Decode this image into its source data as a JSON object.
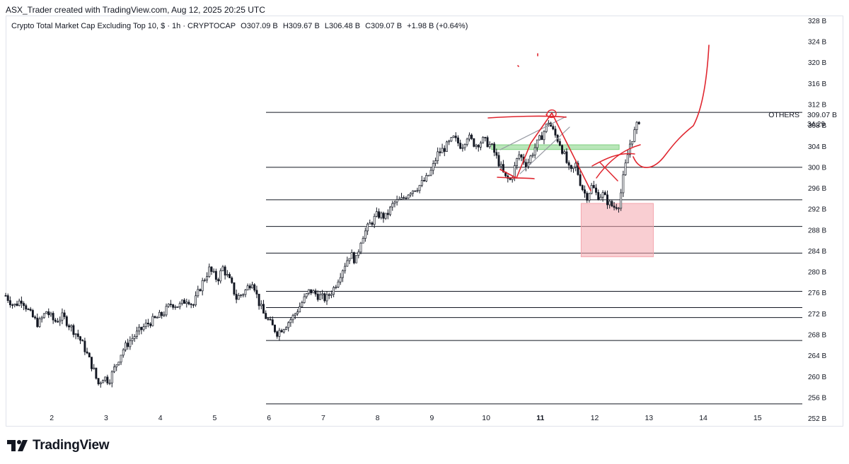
{
  "header": {
    "attribution": "ASX_Trader created with TradingView.com, Aug 12, 2025 20:25 UTC"
  },
  "legend": {
    "title": "Crypto Total Market Cap Excluding Top 10, $ · 1h · CRYPTOCAP",
    "open": "O307.09 B",
    "high": "H309.67 B",
    "low": "L306.48 B",
    "close": "C309.07 B",
    "change": "+1.98 B (+0.64%)"
  },
  "price_tag": {
    "symbol": "OTHERS",
    "price": "309.07 B",
    "countdown": "34:29"
  },
  "brand": {
    "name": "TradingView"
  },
  "chart_data": {
    "type": "candlestick",
    "y_unit": "B",
    "ylim": [
      251,
      329
    ],
    "y_ticks": [
      252,
      256,
      260,
      264,
      268,
      272,
      276,
      280,
      284,
      288,
      292,
      296,
      300,
      304,
      308,
      312,
      316,
      320,
      324,
      328
    ],
    "y_tick_labels": [
      "252 B",
      "256 B",
      "260 B",
      "264 B",
      "268 B",
      "272 B",
      "276 B",
      "280 B",
      "284 B",
      "288 B",
      "292 B",
      "296 B",
      "300 B",
      "304 B",
      "308 B",
      "312 B",
      "316 B",
      "320 B",
      "324 B",
      "328 B"
    ],
    "x_ticks": [
      2,
      3,
      4,
      5,
      6,
      7,
      8,
      9,
      10,
      11,
      12,
      13,
      14,
      15
    ],
    "x_tick_labels": [
      "2",
      "3",
      "4",
      "5",
      "6",
      "7",
      "8",
      "9",
      "10",
      "11",
      "12",
      "13",
      "14",
      "15"
    ],
    "xlim": [
      1.15,
      15.85
    ],
    "close_path": [
      [
        1.15,
        275.5
      ],
      [
        1.3,
        273.5
      ],
      [
        1.45,
        274.8
      ],
      [
        1.6,
        272.0
      ],
      [
        1.75,
        270.0
      ],
      [
        1.9,
        272.5
      ],
      [
        2.05,
        270.5
      ],
      [
        2.2,
        271.5
      ],
      [
        2.35,
        269.5
      ],
      [
        2.5,
        267.5
      ],
      [
        2.6,
        265.5
      ],
      [
        2.7,
        263.0
      ],
      [
        2.78,
        261.0
      ],
      [
        2.85,
        258.5
      ],
      [
        2.95,
        260.0
      ],
      [
        3.05,
        259.2
      ],
      [
        3.15,
        261.5
      ],
      [
        3.3,
        265.0
      ],
      [
        3.45,
        267.0
      ],
      [
        3.6,
        268.6
      ],
      [
        3.75,
        270.0
      ],
      [
        3.9,
        271.0
      ],
      [
        4.05,
        272.0
      ],
      [
        4.2,
        274.0
      ],
      [
        4.35,
        273.5
      ],
      [
        4.5,
        275.0
      ],
      [
        4.6,
        273.5
      ],
      [
        4.75,
        277.5
      ],
      [
        4.9,
        280.5
      ],
      [
        5.05,
        278.5
      ],
      [
        5.15,
        280.8
      ],
      [
        5.3,
        277.8
      ],
      [
        5.4,
        275.0
      ],
      [
        5.55,
        276.2
      ],
      [
        5.7,
        278.5
      ],
      [
        5.8,
        274.5
      ],
      [
        5.9,
        272.0
      ],
      [
        6.0,
        270.5
      ],
      [
        6.15,
        268.4
      ],
      [
        6.3,
        269.8
      ],
      [
        6.45,
        271.5
      ],
      [
        6.6,
        274.0
      ],
      [
        6.75,
        276.5
      ],
      [
        6.9,
        275.5
      ],
      [
        7.05,
        274.8
      ],
      [
        7.2,
        277.0
      ],
      [
        7.35,
        280.5
      ],
      [
        7.5,
        283.5
      ],
      [
        7.6,
        282.0
      ],
      [
        7.7,
        286.5
      ],
      [
        7.85,
        289.0
      ],
      [
        8.0,
        291.0
      ],
      [
        8.15,
        290.5
      ],
      [
        8.3,
        293.2
      ],
      [
        8.45,
        293.8
      ],
      [
        8.6,
        295.5
      ],
      [
        8.75,
        296.3
      ],
      [
        8.9,
        297.8
      ],
      [
        9.0,
        299.5
      ],
      [
        9.1,
        302.5
      ],
      [
        9.25,
        303.8
      ],
      [
        9.4,
        305.5
      ],
      [
        9.55,
        304.0
      ],
      [
        9.65,
        306.0
      ],
      [
        9.8,
        304.3
      ],
      [
        9.95,
        305.2
      ],
      [
        10.1,
        304.0
      ],
      [
        10.25,
        300.5
      ],
      [
        10.35,
        298.0
      ],
      [
        10.45,
        297.5
      ],
      [
        10.6,
        302.5
      ],
      [
        10.75,
        300.5
      ],
      [
        10.9,
        303.8
      ],
      [
        11.05,
        306.5
      ],
      [
        11.15,
        308.8
      ],
      [
        11.25,
        306.5
      ],
      [
        11.35,
        304.8
      ],
      [
        11.45,
        302.0
      ],
      [
        11.55,
        298.8
      ],
      [
        11.65,
        300.5
      ],
      [
        11.75,
        296.5
      ],
      [
        11.85,
        294.3
      ],
      [
        11.95,
        296.5
      ],
      [
        12.05,
        294.5
      ],
      [
        12.15,
        294.8
      ],
      [
        12.25,
        293.2
      ],
      [
        12.35,
        292.4
      ],
      [
        12.45,
        293.0
      ],
      [
        12.55,
        299.5
      ],
      [
        12.65,
        304.5
      ],
      [
        12.75,
        307.2
      ],
      [
        12.82,
        309.07
      ]
    ],
    "horizontal_levels": [
      310.5,
      300.0,
      293.8,
      288.7,
      283.6,
      276.3,
      273.2,
      271.3,
      266.9,
      254.8
    ],
    "zones": [
      {
        "name": "green-zone",
        "x": [
          10.1,
          12.45
        ],
        "y": [
          303.4,
          304.3
        ],
        "color": "#7fd17f"
      },
      {
        "name": "red-zone",
        "x": [
          11.75,
          13.08
        ],
        "y": [
          282.9,
          293.1
        ],
        "color": "#f4a6ad"
      }
    ],
    "grid": false,
    "colors": {
      "candle": "#131722",
      "level": "#131722",
      "drawing": "#e0262f",
      "drawing_grey": "#9598a1"
    }
  }
}
